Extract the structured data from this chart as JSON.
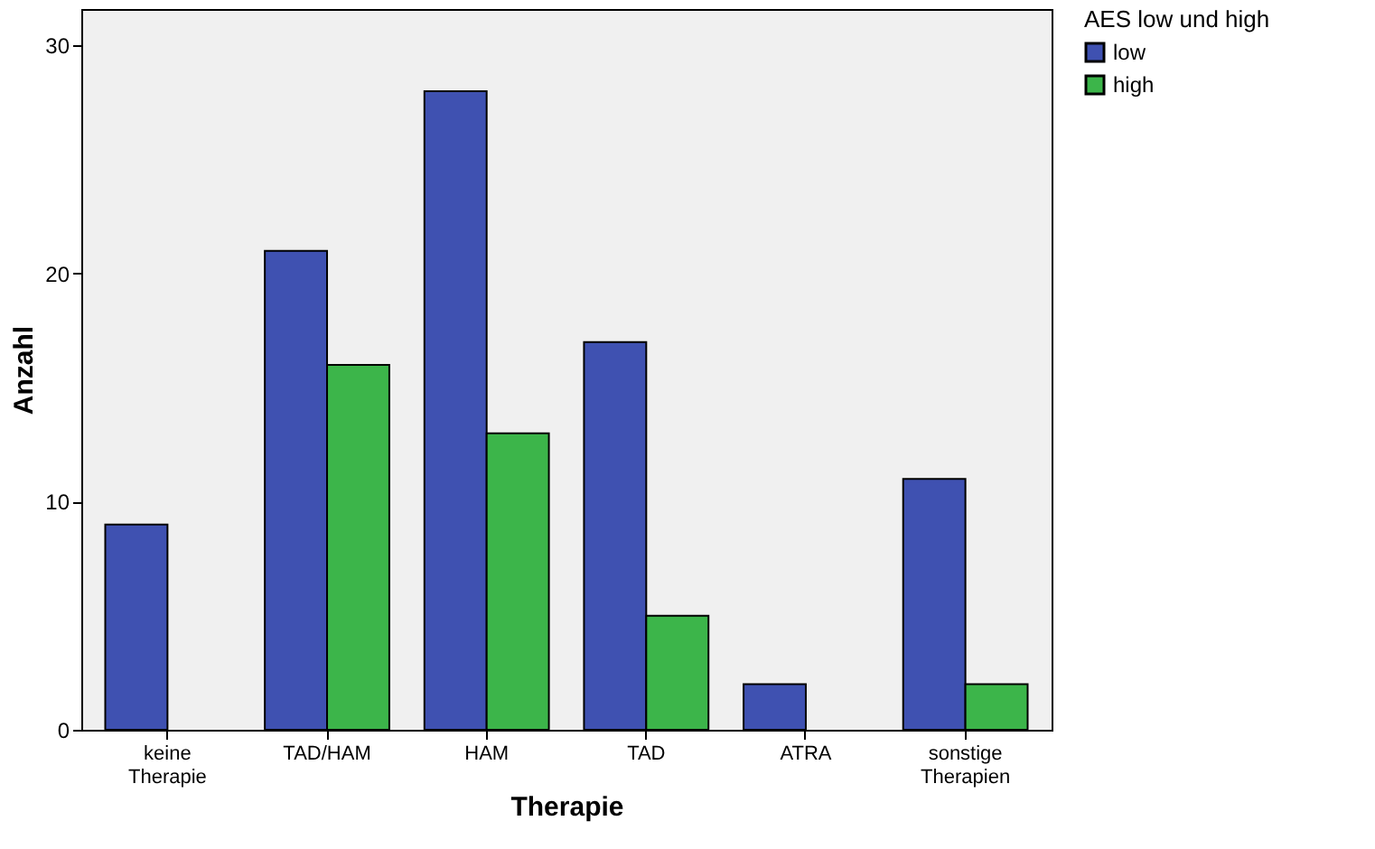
{
  "chart_data": {
    "type": "bar",
    "xlabel": "Therapie",
    "ylabel": "Anzahl",
    "legend_title": "AES low und high",
    "categories": [
      "keine Therapie",
      "TAD/HAM",
      "HAM",
      "TAD",
      "ATRA",
      "sonstige Therapien"
    ],
    "series": [
      {
        "name": "low",
        "color": "#3f51b1",
        "values": [
          9,
          21,
          28,
          17,
          2,
          11
        ]
      },
      {
        "name": "high",
        "color": "#3cb54a",
        "values": [
          0,
          16,
          13,
          5,
          0,
          2
        ]
      }
    ],
    "ylim": [
      0,
      31.6
    ],
    "yticks": [
      0,
      10,
      20,
      30
    ],
    "grid": false,
    "legend": "top right"
  }
}
